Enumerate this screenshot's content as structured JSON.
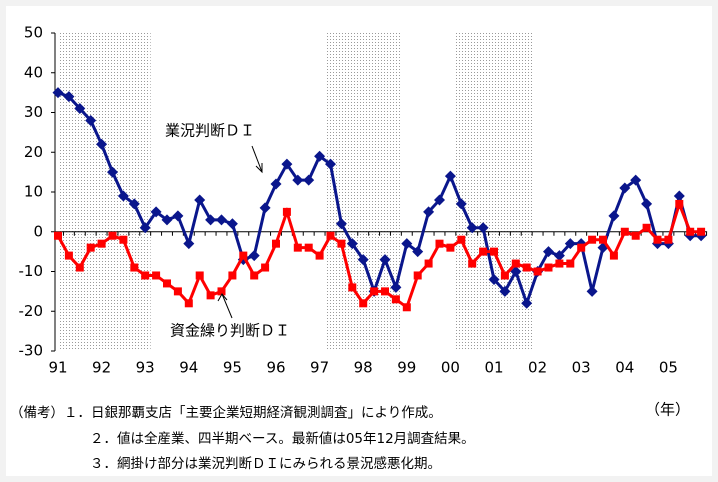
{
  "chart_data": {
    "type": "line",
    "categories": [
      "91",
      null,
      null,
      null,
      "92",
      null,
      null,
      null,
      "93",
      null,
      null,
      null,
      "94",
      null,
      null,
      null,
      "95",
      null,
      null,
      null,
      "96",
      null,
      null,
      null,
      "97",
      null,
      null,
      null,
      "98",
      null,
      null,
      null,
      "99",
      null,
      null,
      null,
      "00",
      null,
      null,
      null,
      "01",
      null,
      null,
      null,
      "02",
      null,
      null,
      null,
      "03",
      null,
      null,
      null,
      "04",
      null,
      null,
      null,
      "05",
      null,
      null,
      null
    ],
    "series": [
      {
        "name": "業況判断ＤＩ",
        "color": "#0a168c",
        "marker": "diamond",
        "values": [
          35,
          34,
          31,
          28,
          22,
          15,
          9,
          7,
          1,
          5,
          3,
          4,
          -3,
          8,
          3,
          3,
          2,
          -7,
          -6,
          6,
          12,
          17,
          13,
          13,
          19,
          17,
          2,
          -3,
          -7,
          -15,
          -7,
          -14,
          -3,
          -5,
          5,
          8,
          14,
          7,
          1,
          1,
          -12,
          -15,
          -10,
          -18,
          -10,
          -5,
          -6,
          -3,
          -3,
          -15,
          -4,
          4,
          11,
          13,
          7,
          -3,
          -3,
          9,
          -1,
          -1
        ]
      },
      {
        "name": "資金繰り判断ＤＩ",
        "color": "#ff0000",
        "marker": "square",
        "values": [
          -1,
          -6,
          -9,
          -4,
          -3,
          -1,
          -2,
          -9,
          -11,
          -11,
          -13,
          -15,
          -18,
          -11,
          -16,
          -15,
          -11,
          -6,
          -11,
          -9,
          -3,
          5,
          -4,
          -4,
          -6,
          -1,
          -3,
          -14,
          -18,
          -15,
          -15,
          -17,
          -19,
          -11,
          -8,
          -3,
          -4,
          -2,
          -8,
          -5,
          -5,
          -11,
          -8,
          -9,
          -10,
          -9,
          -8,
          -8,
          -4,
          -2,
          -2,
          -6,
          0,
          -1,
          1,
          -2,
          -2,
          7,
          0,
          0
        ]
      }
    ],
    "shaded_periods": [
      [
        0,
        8.5
      ],
      [
        24.5,
        31.5
      ],
      [
        36.5,
        43.5
      ]
    ],
    "ylim": [
      -30,
      50
    ],
    "yticks": [
      -30,
      -20,
      -10,
      0,
      10,
      20,
      30,
      40,
      50
    ],
    "x_unit": "（年）",
    "notes": [
      "（備考）１．日銀那覇支店「主要企業短期経済観測調査」により作成。",
      "２．値は全産業、四半期ベース。最新値は05年12月調査結果。",
      "３．網掛け部分は業況判断ＤＩにみられる景況感悪化期。"
    ]
  }
}
